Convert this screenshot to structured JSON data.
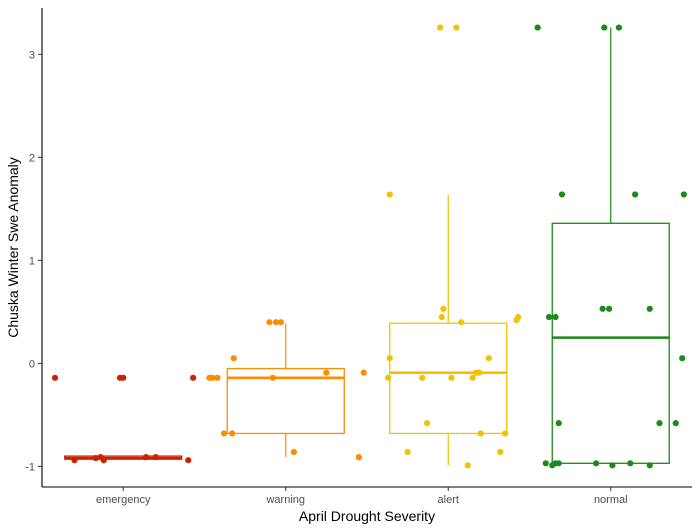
{
  "chart_data": {
    "type": "boxplot",
    "title": "",
    "xlabel": "April Drought Severity",
    "ylabel": "Chuska Winter Swe Anomaly",
    "ylim": [
      -1.2,
      3.45
    ],
    "y_ticks": [
      -1,
      0,
      1,
      2,
      3
    ],
    "y_tick_labels": [
      "-1",
      "0",
      "1",
      "2",
      "3"
    ],
    "grid": false,
    "legend": "none",
    "categories": [
      "emergency",
      "warning",
      "alert",
      "normal"
    ],
    "series": [
      {
        "category": "emergency",
        "color": "#cc2200",
        "box": {
          "whisker_low": -0.93,
          "q1": -0.93,
          "median": -0.92,
          "q3": -0.9,
          "whisker_high": -0.9
        },
        "points": [
          {
            "x": -0.42,
            "y": -0.14
          },
          {
            "x": -0.02,
            "y": -0.14
          },
          {
            "x": 0.0,
            "y": -0.14
          },
          {
            "x": 0.43,
            "y": -0.14
          },
          {
            "x": -0.3,
            "y": -0.94
          },
          {
            "x": -0.17,
            "y": -0.92
          },
          {
            "x": -0.14,
            "y": -0.91
          },
          {
            "x": -0.12,
            "y": -0.94
          },
          {
            "x": 0.14,
            "y": -0.91
          },
          {
            "x": 0.2,
            "y": -0.91
          },
          {
            "x": 0.4,
            "y": -0.94
          }
        ]
      },
      {
        "category": "warning",
        "color": "#ff8c00",
        "box": {
          "whisker_low": -0.91,
          "q1": -0.68,
          "median": -0.14,
          "q3": -0.05,
          "whisker_high": 0.39
        },
        "points": [
          {
            "x": -0.1,
            "y": 0.4
          },
          {
            "x": -0.06,
            "y": 0.4
          },
          {
            "x": -0.03,
            "y": 0.4
          },
          {
            "x": -0.32,
            "y": 0.05
          },
          {
            "x": -0.47,
            "y": -0.14
          },
          {
            "x": -0.45,
            "y": -0.14
          },
          {
            "x": -0.42,
            "y": -0.14
          },
          {
            "x": -0.08,
            "y": -0.14
          },
          {
            "x": 0.25,
            "y": -0.09
          },
          {
            "x": 0.48,
            "y": -0.09
          },
          {
            "x": -0.38,
            "y": -0.68
          },
          {
            "x": -0.33,
            "y": -0.68
          },
          {
            "x": 0.05,
            "y": -0.86
          },
          {
            "x": 0.45,
            "y": -0.91
          }
        ]
      },
      {
        "category": "alert",
        "color": "#f2c200",
        "box": {
          "whisker_low": -0.99,
          "q1": -0.68,
          "median": -0.09,
          "q3": 0.39,
          "whisker_high": 1.64
        },
        "points": [
          {
            "x": -0.05,
            "y": 3.26
          },
          {
            "x": 0.05,
            "y": 3.26
          },
          {
            "x": -0.36,
            "y": 1.64
          },
          {
            "x": -0.03,
            "y": 0.53
          },
          {
            "x": -0.04,
            "y": 0.45
          },
          {
            "x": 0.43,
            "y": 0.45
          },
          {
            "x": 0.42,
            "y": 0.42
          },
          {
            "x": 0.08,
            "y": 0.4
          },
          {
            "x": -0.36,
            "y": 0.05
          },
          {
            "x": 0.25,
            "y": 0.05
          },
          {
            "x": -0.37,
            "y": -0.14
          },
          {
            "x": -0.16,
            "y": -0.14
          },
          {
            "x": 0.02,
            "y": -0.14
          },
          {
            "x": 0.15,
            "y": -0.14
          },
          {
            "x": 0.17,
            "y": -0.09
          },
          {
            "x": 0.19,
            "y": -0.09
          },
          {
            "x": -0.13,
            "y": -0.58
          },
          {
            "x": 0.2,
            "y": -0.68
          },
          {
            "x": 0.35,
            "y": -0.68
          },
          {
            "x": -0.25,
            "y": -0.86
          },
          {
            "x": 0.32,
            "y": -0.86
          },
          {
            "x": 0.12,
            "y": -0.99
          }
        ]
      },
      {
        "category": "normal",
        "color": "#1a8a1a",
        "box": {
          "whisker_low": -0.99,
          "q1": -0.97,
          "median": 0.25,
          "q3": 1.36,
          "whisker_high": 3.26
        },
        "points": [
          {
            "x": -0.45,
            "y": 3.26
          },
          {
            "x": -0.04,
            "y": 3.26
          },
          {
            "x": 0.05,
            "y": 3.26
          },
          {
            "x": -0.3,
            "y": 1.64
          },
          {
            "x": 0.15,
            "y": 1.64
          },
          {
            "x": 0.45,
            "y": 1.64
          },
          {
            "x": -0.05,
            "y": 0.53
          },
          {
            "x": -0.01,
            "y": 0.53
          },
          {
            "x": 0.24,
            "y": 0.53
          },
          {
            "x": -0.38,
            "y": 0.45
          },
          {
            "x": -0.34,
            "y": 0.45
          },
          {
            "x": 0.44,
            "y": 0.05
          },
          {
            "x": -0.32,
            "y": -0.58
          },
          {
            "x": 0.3,
            "y": -0.58
          },
          {
            "x": 0.4,
            "y": -0.58
          },
          {
            "x": -0.4,
            "y": -0.97
          },
          {
            "x": -0.36,
            "y": -0.99
          },
          {
            "x": -0.34,
            "y": -0.97
          },
          {
            "x": -0.32,
            "y": -0.97
          },
          {
            "x": -0.09,
            "y": -0.97
          },
          {
            "x": 0.01,
            "y": -0.99
          },
          {
            "x": 0.12,
            "y": -0.97
          },
          {
            "x": 0.24,
            "y": -0.99
          }
        ]
      }
    ]
  }
}
